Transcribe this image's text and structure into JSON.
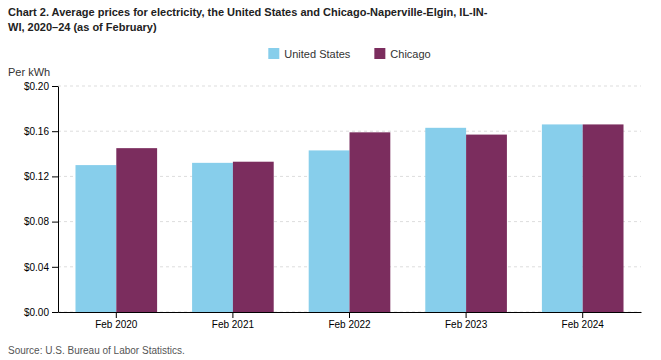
{
  "chart_data": {
    "type": "bar",
    "title": "Chart 2. Average prices for electricity, the United States and Chicago-Naperville-Elgin, IL-IN-\nWI, 2020–24 (as of February)",
    "ylabel": "Per kWh",
    "source": "Source: U.S. Bureau of Labor Statistics.",
    "categories": [
      "Feb 2020",
      "Feb 2021",
      "Feb 2022",
      "Feb 2023",
      "Feb 2024"
    ],
    "series": [
      {
        "name": "United States",
        "color": "#87CEEB",
        "values": [
          0.13,
          0.132,
          0.143,
          0.163,
          0.166
        ]
      },
      {
        "name": "Chicago",
        "color": "#7B2D5E",
        "values": [
          0.145,
          0.133,
          0.159,
          0.157,
          0.166
        ]
      }
    ],
    "ylim": [
      0,
      0.2
    ],
    "yticks": [
      {
        "value": 0.0,
        "label": "$0.00"
      },
      {
        "value": 0.04,
        "label": "$0.04"
      },
      {
        "value": 0.08,
        "label": "$0.08"
      },
      {
        "value": 0.12,
        "label": "$0.12"
      },
      {
        "value": 0.16,
        "label": "$0.16"
      },
      {
        "value": 0.2,
        "label": "$0.20"
      }
    ],
    "grid": true,
    "legend": "top"
  }
}
